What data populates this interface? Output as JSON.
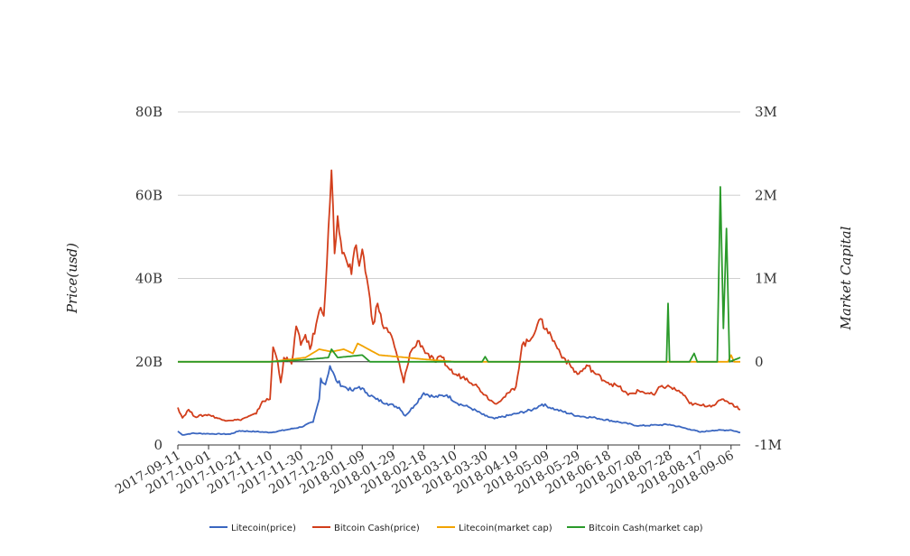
{
  "chart_data": {
    "type": "line",
    "title": "",
    "ylabel_left": "Price(usd)",
    "ylabel_right": "Market Capital",
    "left_ticks": [
      "0",
      "20B",
      "40B",
      "60B",
      "80B"
    ],
    "right_ticks": [
      "-1M",
      "0",
      "1M",
      "2M",
      "3M"
    ],
    "x_ticks": [
      "2017-09-11",
      "2017-10-01",
      "2017-10-21",
      "2017-11-10",
      "2017-11-30",
      "2017-12-20",
      "2018-01-09",
      "2018-01-29",
      "2018-02-18",
      "2018-03-10",
      "2018-03-30",
      "2018-04-19",
      "2018-05-09",
      "2018-05-29",
      "2018-06-18",
      "2018-07-08",
      "2018-07-28",
      "2018-08-17",
      "2018-09-06"
    ],
    "x_start": "2017-09-11",
    "x_end": "2018-09-12",
    "ylim_left": [
      0,
      80000000000
    ],
    "ylim_right": [
      -1000000,
      3000000
    ],
    "grid": true,
    "legend_position": "bottom",
    "series": [
      {
        "name": "Litecoin(price)",
        "axis": "left",
        "color": "#3a66c0",
        "points": [
          [
            "2017-09-11",
            3300000000.0
          ],
          [
            "2017-09-14",
            2400000000.0
          ],
          [
            "2017-09-20",
            2800000000.0
          ],
          [
            "2017-10-01",
            2700000000.0
          ],
          [
            "2017-10-15",
            2600000000.0
          ],
          [
            "2017-10-21",
            3400000000.0
          ],
          [
            "2017-11-01",
            3200000000.0
          ],
          [
            "2017-11-10",
            3000000000.0
          ],
          [
            "2017-11-20",
            3600000000.0
          ],
          [
            "2017-11-30",
            4300000000.0
          ],
          [
            "2017-12-08",
            5500000000.0
          ],
          [
            "2017-12-12",
            11000000000.0
          ],
          [
            "2017-12-13",
            16000000000.0
          ],
          [
            "2017-12-16",
            14500000000.0
          ],
          [
            "2017-12-19",
            19000000000.0
          ],
          [
            "2017-12-23",
            15500000000.0
          ],
          [
            "2017-12-28",
            14000000000.0
          ],
          [
            "2018-01-03",
            13000000000.0
          ],
          [
            "2018-01-07",
            14000000000.0
          ],
          [
            "2018-01-12",
            12500000000.0
          ],
          [
            "2018-01-18",
            11000000000.0
          ],
          [
            "2018-01-25",
            10000000000.0
          ],
          [
            "2018-02-02",
            9000000000.0
          ],
          [
            "2018-02-06",
            7000000000.0
          ],
          [
            "2018-02-12",
            9500000000.0
          ],
          [
            "2018-02-18",
            12500000000.0
          ],
          [
            "2018-02-25",
            11500000000.0
          ],
          [
            "2018-03-05",
            12000000000.0
          ],
          [
            "2018-03-12",
            10000000000.0
          ],
          [
            "2018-03-20",
            9000000000.0
          ],
          [
            "2018-03-30",
            7000000000.0
          ],
          [
            "2018-04-05",
            6300000000.0
          ],
          [
            "2018-04-19",
            7500000000.0
          ],
          [
            "2018-04-30",
            8500000000.0
          ],
          [
            "2018-05-06",
            9800000000.0
          ],
          [
            "2018-05-15",
            8500000000.0
          ],
          [
            "2018-05-29",
            7000000000.0
          ],
          [
            "2018-06-10",
            6500000000.0
          ],
          [
            "2018-06-25",
            5500000000.0
          ],
          [
            "2018-07-08",
            4600000000.0
          ],
          [
            "2018-07-20",
            4800000000.0
          ],
          [
            "2018-07-28",
            4900000000.0
          ],
          [
            "2018-08-10",
            3800000000.0
          ],
          [
            "2018-08-17",
            3100000000.0
          ],
          [
            "2018-08-25",
            3500000000.0
          ],
          [
            "2018-09-06",
            3600000000.0
          ],
          [
            "2018-09-12",
            3000000000.0
          ]
        ]
      },
      {
        "name": "Bitcoin Cash(price)",
        "axis": "left",
        "color": "#d23e1b",
        "points": [
          [
            "2017-09-11",
            9000000000.0
          ],
          [
            "2017-09-14",
            6500000000.0
          ],
          [
            "2017-09-18",
            8500000000.0
          ],
          [
            "2017-09-22",
            6800000000.0
          ],
          [
            "2017-10-01",
            7300000000.0
          ],
          [
            "2017-10-10",
            6000000000.0
          ],
          [
            "2017-10-21",
            6000000000.0
          ],
          [
            "2017-11-01",
            7500000000.0
          ],
          [
            "2017-11-05",
            10500000000.0
          ],
          [
            "2017-11-10",
            11000000000.0
          ],
          [
            "2017-11-12",
            23500000000.0
          ],
          [
            "2017-11-15",
            20000000000.0
          ],
          [
            "2017-11-17",
            15000000000.0
          ],
          [
            "2017-11-19",
            21000000000.0
          ],
          [
            "2017-11-24",
            19500000000.0
          ],
          [
            "2017-11-27",
            28500000000.0
          ],
          [
            "2017-11-30",
            24000000000.0
          ],
          [
            "2017-12-03",
            26500000000.0
          ],
          [
            "2017-12-06",
            23000000000.0
          ],
          [
            "2017-12-10",
            29000000000.0
          ],
          [
            "2017-12-13",
            33000000000.0
          ],
          [
            "2017-12-15",
            31000000000.0
          ],
          [
            "2017-12-18",
            52000000000.0
          ],
          [
            "2017-12-20",
            66000000000.0
          ],
          [
            "2017-12-22",
            46000000000.0
          ],
          [
            "2017-12-24",
            55000000000.0
          ],
          [
            "2017-12-27",
            46000000000.0
          ],
          [
            "2017-12-30",
            44000000000.0
          ],
          [
            "2018-01-02",
            41000000000.0
          ],
          [
            "2018-01-05",
            48000000000.0
          ],
          [
            "2018-01-07",
            43000000000.0
          ],
          [
            "2018-01-09",
            47000000000.0
          ],
          [
            "2018-01-12",
            40000000000.0
          ],
          [
            "2018-01-16",
            29000000000.0
          ],
          [
            "2018-01-19",
            34000000000.0
          ],
          [
            "2018-01-22",
            29000000000.0
          ],
          [
            "2018-01-27",
            27000000000.0
          ],
          [
            "2018-02-01",
            21000000000.0
          ],
          [
            "2018-02-05",
            15000000000.0
          ],
          [
            "2018-02-09",
            22000000000.0
          ],
          [
            "2018-02-15",
            25000000000.0
          ],
          [
            "2018-02-18",
            23000000000.0
          ],
          [
            "2018-02-25",
            20000000000.0
          ],
          [
            "2018-03-02",
            21000000000.0
          ],
          [
            "2018-03-05",
            19000000000.0
          ],
          [
            "2018-03-10",
            17000000000.0
          ],
          [
            "2018-03-18",
            16000000000.0
          ],
          [
            "2018-03-25",
            14000000000.0
          ],
          [
            "2018-03-30",
            12000000000.0
          ],
          [
            "2018-04-05",
            10000000000.0
          ],
          [
            "2018-04-10",
            11000000000.0
          ],
          [
            "2018-04-19",
            14000000000.0
          ],
          [
            "2018-04-23",
            24000000000.0
          ],
          [
            "2018-04-28",
            25000000000.0
          ],
          [
            "2018-05-04",
            30000000000.0
          ],
          [
            "2018-05-09",
            28000000000.0
          ],
          [
            "2018-05-15",
            24000000000.0
          ],
          [
            "2018-05-20",
            21000000000.0
          ],
          [
            "2018-05-29",
            17000000000.0
          ],
          [
            "2018-06-05",
            19000000000.0
          ],
          [
            "2018-06-10",
            17000000000.0
          ],
          [
            "2018-06-18",
            15000000000.0
          ],
          [
            "2018-06-25",
            14000000000.0
          ],
          [
            "2018-07-01",
            12000000000.0
          ],
          [
            "2018-07-08",
            13000000000.0
          ],
          [
            "2018-07-18",
            12000000000.0
          ],
          [
            "2018-07-22",
            14000000000.0
          ],
          [
            "2018-07-28",
            14000000000.0
          ],
          [
            "2018-08-05",
            12500000000.0
          ],
          [
            "2018-08-10",
            10000000000.0
          ],
          [
            "2018-08-17",
            9500000000.0
          ],
          [
            "2018-08-25",
            9500000000.0
          ],
          [
            "2018-09-01",
            11000000000.0
          ],
          [
            "2018-09-06",
            10000000000.0
          ],
          [
            "2018-09-12",
            8500000000.0
          ]
        ]
      },
      {
        "name": "Litecoin(market cap)",
        "axis": "right",
        "color": "#f2a300",
        "points": [
          [
            "2017-09-11",
            0
          ],
          [
            "2017-10-01",
            0
          ],
          [
            "2017-11-10",
            0
          ],
          [
            "2017-11-24",
            30000
          ],
          [
            "2017-12-03",
            50000
          ],
          [
            "2017-12-12",
            150000
          ],
          [
            "2017-12-20",
            120000
          ],
          [
            "2017-12-28",
            150000
          ],
          [
            "2018-01-03",
            100000
          ],
          [
            "2018-01-06",
            220000
          ],
          [
            "2018-01-10",
            180000
          ],
          [
            "2018-01-20",
            80000
          ],
          [
            "2018-02-01",
            60000
          ],
          [
            "2018-02-18",
            30000
          ],
          [
            "2018-03-10",
            0
          ],
          [
            "2018-04-19",
            0
          ],
          [
            "2018-06-18",
            0
          ],
          [
            "2018-08-17",
            0
          ],
          [
            "2018-09-04",
            0
          ],
          [
            "2018-09-06",
            80000
          ],
          [
            "2018-09-08",
            0
          ],
          [
            "2018-09-12",
            0
          ]
        ]
      },
      {
        "name": "Bitcoin Cash(market cap)",
        "axis": "right",
        "color": "#2a9a2a",
        "points": [
          [
            "2017-09-11",
            0
          ],
          [
            "2017-11-10",
            0
          ],
          [
            "2017-11-30",
            20000
          ],
          [
            "2017-12-18",
            50000
          ],
          [
            "2017-12-20",
            150000
          ],
          [
            "2017-12-24",
            50000
          ],
          [
            "2018-01-09",
            80000
          ],
          [
            "2018-01-14",
            0
          ],
          [
            "2018-03-28",
            0
          ],
          [
            "2018-03-30",
            60000
          ],
          [
            "2018-04-01",
            0
          ],
          [
            "2018-07-08",
            0
          ],
          [
            "2018-07-26",
            0
          ],
          [
            "2018-07-27",
            700000
          ],
          [
            "2018-07-28",
            0
          ],
          [
            "2018-08-10",
            0
          ],
          [
            "2018-08-13",
            100000
          ],
          [
            "2018-08-15",
            0
          ],
          [
            "2018-08-28",
            0
          ],
          [
            "2018-08-30",
            2100000
          ],
          [
            "2018-09-01",
            400000
          ],
          [
            "2018-09-03",
            1600000
          ],
          [
            "2018-09-05",
            0
          ],
          [
            "2018-09-12",
            50000
          ]
        ]
      }
    ]
  }
}
